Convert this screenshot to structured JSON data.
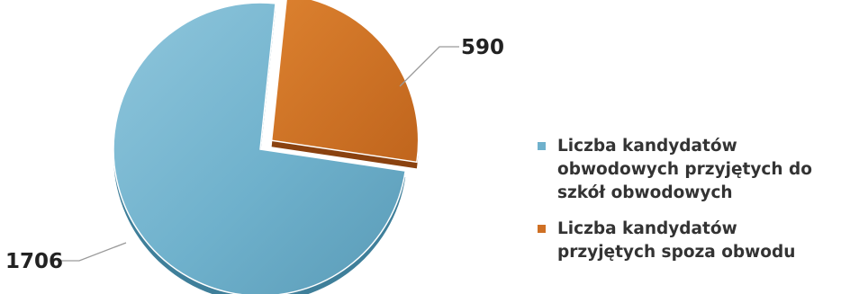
{
  "chart_data": {
    "type": "pie",
    "title": "",
    "categories": [
      "Liczba kandydatów obwodowych przyjętych do szkół obwodowych",
      "Liczba kandydatów przyjętych spoza obwodu"
    ],
    "values": [
      1706,
      590
    ],
    "data_labels": [
      "1706",
      "590"
    ],
    "colors": [
      "#6fb1cc",
      "#cf7024"
    ],
    "exploded_slice": 1,
    "legend": {
      "placement": "right",
      "entries": [
        {
          "text": "Liczba kandydatów obwodowych przyjętych do szkół obwodowych",
          "color": "#6fb1cc"
        },
        {
          "text": "Liczba kandydatów przyjętych spoza obwodu",
          "color": "#cf7024"
        }
      ]
    }
  }
}
